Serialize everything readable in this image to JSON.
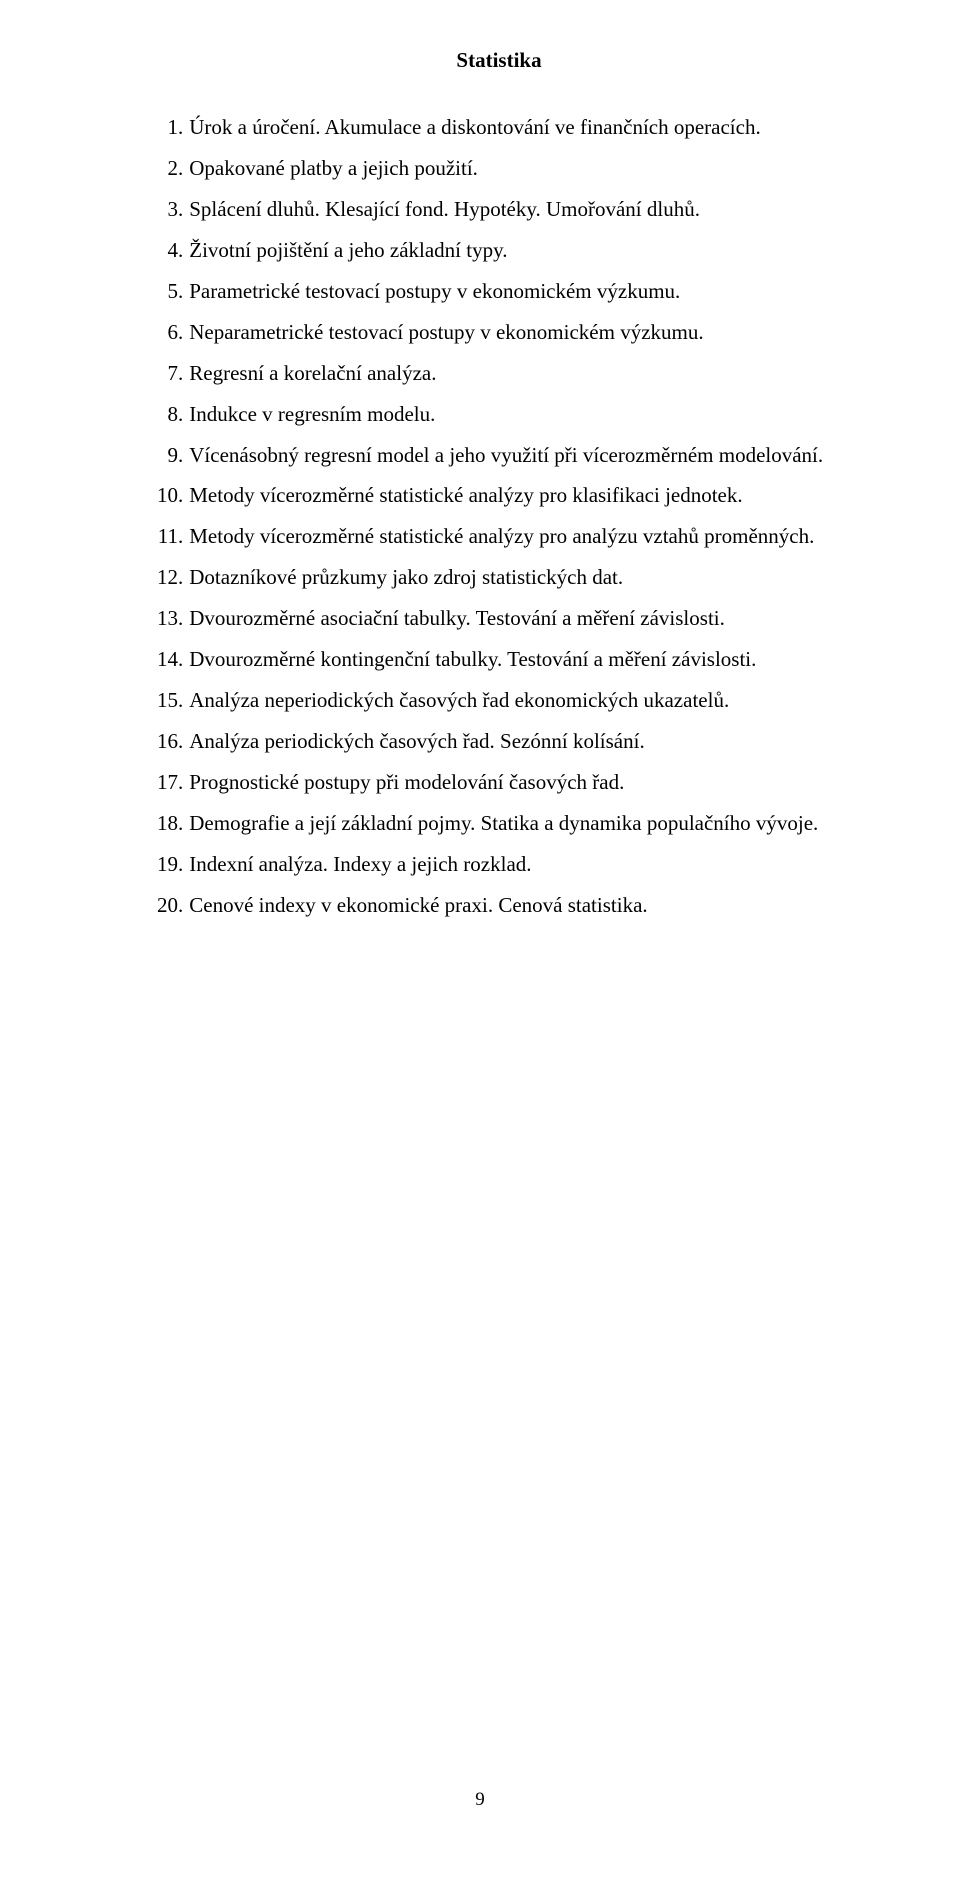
{
  "document": {
    "title": "Statistika",
    "page_number": "9",
    "font_family": "Times New Roman",
    "title_fontsize": 21,
    "body_fontsize": 21,
    "text_color": "#000000",
    "background_color": "#ffffff",
    "items": [
      {
        "num": "1",
        "text": "Úrok a úročení. Akumulace a diskontování ve finančních operacích."
      },
      {
        "num": "2",
        "text": "Opakované platby a jejich použití."
      },
      {
        "num": "3",
        "text": "Splácení dluhů. Klesající fond. Hypotéky. Umořování dluhů."
      },
      {
        "num": "4",
        "text": "Životní pojištění a jeho základní typy."
      },
      {
        "num": "5",
        "text": "Parametrické testovací postupy v ekonomickém výzkumu."
      },
      {
        "num": "6",
        "text": "Neparametrické testovací postupy v ekonomickém výzkumu."
      },
      {
        "num": "7",
        "text": "Regresní a korelační analýza."
      },
      {
        "num": "8",
        "text": "Indukce v regresním modelu."
      },
      {
        "num": "9",
        "text": "Vícenásobný regresní model a jeho využití při vícerozměrném modelování."
      },
      {
        "num": "10",
        "text": "Metody vícerozměrné statistické analýzy pro klasifikaci jednotek."
      },
      {
        "num": "11",
        "text": "Metody vícerozměrné statistické analýzy pro analýzu vztahů proměnných."
      },
      {
        "num": "12",
        "text": "Dotazníkové průzkumy jako zdroj statistických dat."
      },
      {
        "num": "13",
        "text": "Dvourozměrné asociační tabulky. Testování a měření závislosti."
      },
      {
        "num": "14",
        "text": "Dvourozměrné kontingenční tabulky. Testování a měření závislosti."
      },
      {
        "num": "15",
        "text": "Analýza neperiodických časových řad ekonomických ukazatelů."
      },
      {
        "num": "16",
        "text": "Analýza periodických časových řad. Sezónní kolísání."
      },
      {
        "num": "17",
        "text": "Prognostické postupy při modelování časových řad."
      },
      {
        "num": "18",
        "text": "Demografie a její základní pojmy. Statika a dynamika populačního vývoje."
      },
      {
        "num": "19",
        "text": "Indexní analýza. Indexy a jejich rozklad."
      },
      {
        "num": "20",
        "text": "Cenové indexy v ekonomické praxi. Cenová statistika."
      }
    ]
  }
}
